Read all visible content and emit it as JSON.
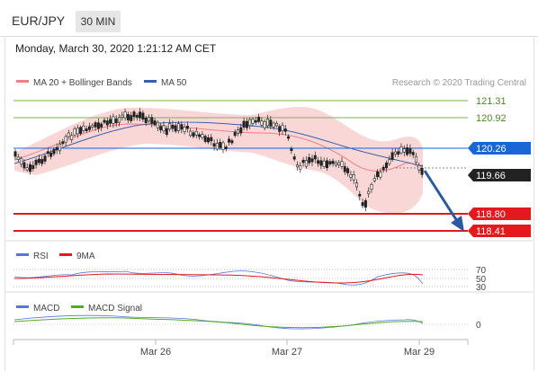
{
  "header": {
    "pair": "EUR/JPY",
    "timeframe": "30 MIN"
  },
  "timestamp": "Monday, March 30, 2020 1:21:12 AM CET",
  "main_legend": {
    "ma20": "MA 20 + Bollinger Bands",
    "ma50": "MA 50",
    "credit": "Research © 2020 Trading Central"
  },
  "levels": [
    {
      "value": "121.31",
      "color": "#7ab648",
      "kind": "resistance"
    },
    {
      "value": "120.92",
      "color": "#7ab648",
      "kind": "resistance"
    },
    {
      "value": "120.26",
      "color": "#1a66d6",
      "kind": "pivot"
    },
    {
      "value": "119.66",
      "color": "#222222",
      "kind": "last"
    },
    {
      "value": "118.80",
      "color": "#e3191e",
      "kind": "support"
    },
    {
      "value": "118.41",
      "color": "#e3191e",
      "kind": "support"
    }
  ],
  "rsi_legend": {
    "rsi": "RSI",
    "ma": "9MA",
    "levels": [
      "70",
      "50",
      "30"
    ]
  },
  "macd_legend": {
    "macd": "MACD",
    "signal": "MACD Signal",
    "zero": "0"
  },
  "x_axis": [
    "Mar 26",
    "Mar 27",
    "Mar 29"
  ],
  "colors": {
    "bollinger": "#f8d0d0",
    "ma20": "#f08080",
    "ma50": "#3a5fa8",
    "up_candle": "#222",
    "arrow": "#2c5aa0",
    "rsi": "#5577dd",
    "rsi_ma": "#e3191e",
    "macd": "#5577dd",
    "signal": "#55aa22"
  }
}
